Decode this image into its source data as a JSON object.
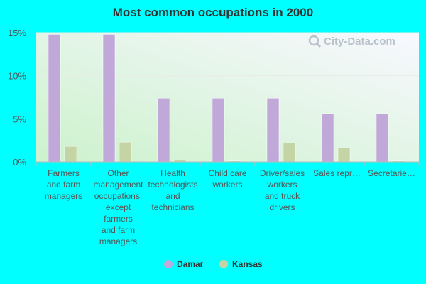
{
  "chart_data": {
    "type": "bar",
    "title": "Most common occupations in 2000",
    "categories": [
      [
        "Farmers",
        "and farm",
        "managers"
      ],
      [
        "Other",
        "management",
        "occupations,",
        "except",
        "farmers",
        "and farm",
        "managers"
      ],
      [
        "Health",
        "technologists",
        "and",
        "technicians"
      ],
      [
        "Child care",
        "workers"
      ],
      [
        "Driver/sales",
        "workers",
        "and truck",
        "drivers"
      ],
      [
        "Sales repr…"
      ],
      [
        "Secretarie…"
      ]
    ],
    "series": [
      {
        "name": "Damar",
        "color": "#c0a8d8",
        "values": [
          14.8,
          14.8,
          7.4,
          7.4,
          7.4,
          5.6,
          5.6
        ]
      },
      {
        "name": "Kansas",
        "color": "#c5d4a4",
        "values": [
          1.8,
          2.3,
          0.2,
          0.1,
          2.2,
          1.6,
          0.1
        ]
      }
    ],
    "y_ticks": [
      "0%",
      "5%",
      "10%",
      "15%"
    ],
    "y_tick_values": [
      0,
      5,
      10,
      15
    ],
    "ylim": [
      0,
      15
    ],
    "legend_position": "bottom-center",
    "grid": true,
    "watermark": "City-Data.com"
  }
}
